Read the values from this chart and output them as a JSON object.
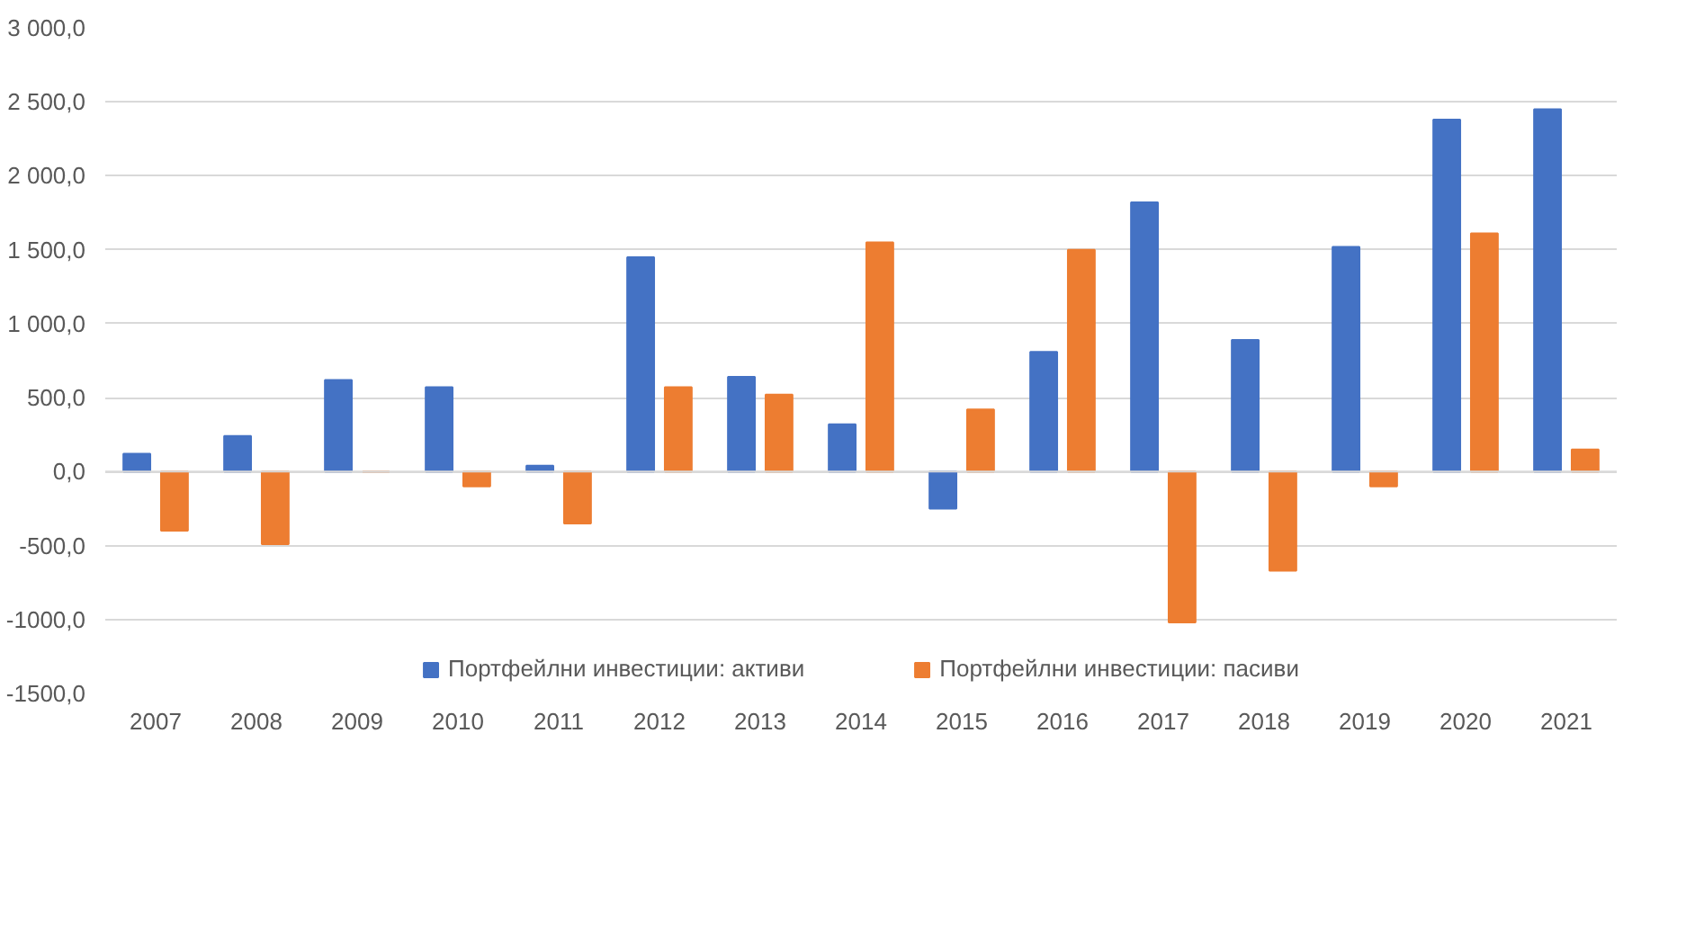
{
  "chart_data": {
    "type": "bar",
    "categories": [
      "2007",
      "2008",
      "2009",
      "2010",
      "2011",
      "2012",
      "2013",
      "2014",
      "2015",
      "2016",
      "2017",
      "2018",
      "2019",
      "2020",
      "2021"
    ],
    "series": [
      {
        "name": "Портфейлни инвестиции: активи",
        "color": "#4472c4",
        "values": [
          120,
          240,
          620,
          570,
          40,
          1450,
          640,
          320,
          -250,
          810,
          1820,
          890,
          1520,
          2380,
          2450
        ]
      },
      {
        "name": "Портфейлни инвестиции: пасиви",
        "color": "#ed7d31",
        "values": [
          -400,
          -490,
          0,
          -100,
          -350,
          570,
          520,
          1550,
          420,
          1500,
          -1020,
          -670,
          -100,
          1610,
          150
        ]
      }
    ],
    "ylim": [
      -1500,
      3000
    ],
    "yticks": [
      {
        "value": -1500,
        "label": "-1500,0"
      },
      {
        "value": -1000,
        "label": "-1000,0"
      },
      {
        "value": -500,
        "label": "-500,0"
      },
      {
        "value": 0,
        "label": "0,0"
      },
      {
        "value": 500,
        "label": "500,0"
      },
      {
        "value": 1000,
        "label": "1 000,0"
      },
      {
        "value": 1500,
        "label": "1 500,0"
      },
      {
        "value": 2000,
        "label": "2 000,0"
      },
      {
        "value": 2500,
        "label": "2 500,0"
      },
      {
        "value": 3000,
        "label": "3 000,0"
      }
    ],
    "grid": "y",
    "legend": "bottom"
  }
}
